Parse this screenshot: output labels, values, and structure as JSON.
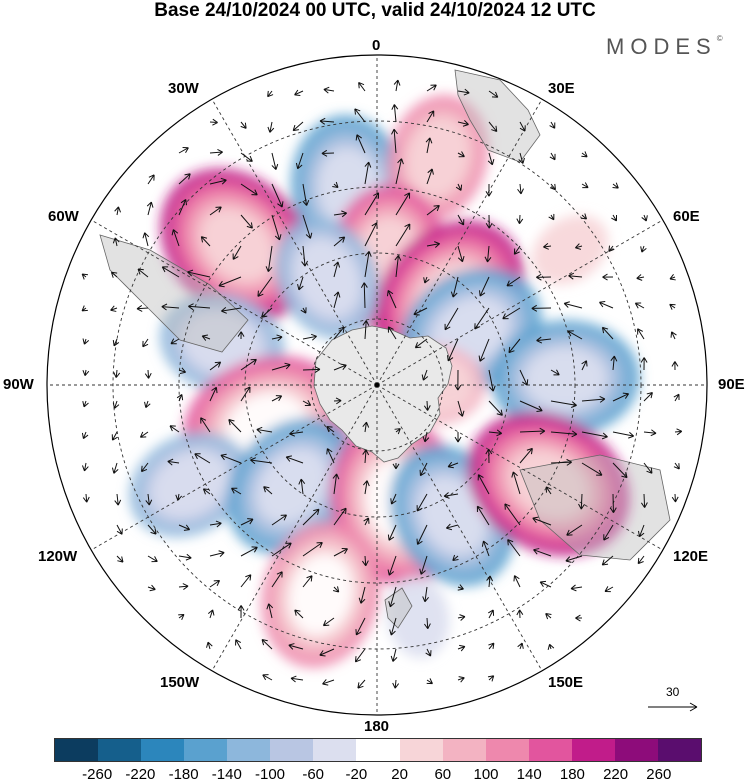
{
  "title": "Base 24/10/2024 00 UTC, valid 24/10/2024 12 UTC",
  "brand": {
    "name": "MODES",
    "mark": "©"
  },
  "longitude_labels": {
    "top": "0",
    "top_left": "30W",
    "top_right": "30E",
    "left_upper": "60W",
    "right_upper": "60E",
    "left": "90W",
    "right": "90E",
    "left_lower": "120W",
    "right_lower": "120E",
    "bottom_left": "150W",
    "bottom_right": "150E",
    "bottom": "180"
  },
  "reference_vector": {
    "value": "30"
  },
  "colorbar": {
    "ticks": [
      "-260",
      "-220",
      "-180",
      "-140",
      "-100",
      "-60",
      "-20",
      "20",
      "60",
      "100",
      "140",
      "180",
      "220",
      "260"
    ],
    "colors": [
      "#0c3c5f",
      "#155f8c",
      "#2c86bc",
      "#5aa1cf",
      "#8db7dc",
      "#b9c6e3",
      "#dcdfef",
      "#ffffff",
      "#f7d5d8",
      "#f3b3c2",
      "#ee88ad",
      "#e2559e",
      "#c11c8a",
      "#8d0c7a",
      "#5a0d6e"
    ]
  },
  "anomaly_centers": [
    {
      "lon": -8,
      "lat": -48,
      "value": -170
    },
    {
      "lon": 15,
      "lat": -40,
      "value": 110
    },
    {
      "lon": 38,
      "lat": -58,
      "value": -40
    },
    {
      "lon": 5,
      "lat": -63,
      "value": 160
    },
    {
      "lon": 40,
      "lat": -66,
      "value": 200
    },
    {
      "lon": -45,
      "lat": -48,
      "value": 190
    },
    {
      "lon": -25,
      "lat": -65,
      "value": -130
    },
    {
      "lon": 60,
      "lat": -67,
      "value": -150
    },
    {
      "lon": 88,
      "lat": -50,
      "value": -140
    },
    {
      "lon": -75,
      "lat": -56,
      "value": -110
    },
    {
      "lon": 90,
      "lat": -78,
      "value": 90
    },
    {
      "lon": -110,
      "lat": -65,
      "value": 180
    },
    {
      "lon": -118,
      "lat": -45,
      "value": -100
    },
    {
      "lon": -140,
      "lat": -62,
      "value": -150
    },
    {
      "lon": 170,
      "lat": -65,
      "value": 180
    },
    {
      "lon": 150,
      "lat": -58,
      "value": -160
    },
    {
      "lon": 120,
      "lat": -48,
      "value": 210
    },
    {
      "lon": -165,
      "lat": -44,
      "value": 140
    },
    {
      "lon": 170,
      "lat": -40,
      "value": -40
    },
    {
      "lon": 55,
      "lat": -40,
      "value": 40
    }
  ]
}
